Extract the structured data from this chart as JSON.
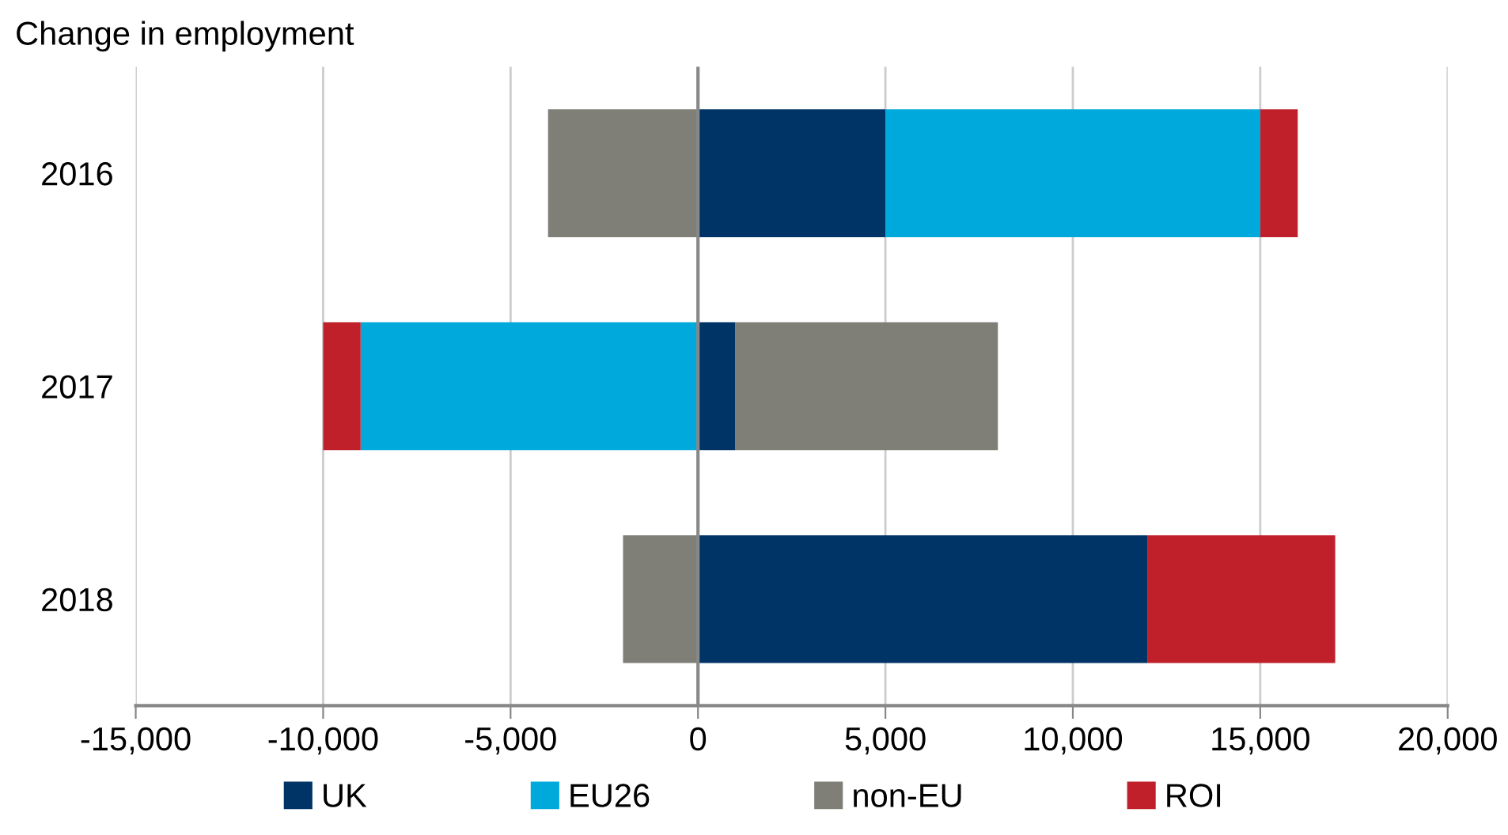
{
  "chart_data": {
    "type": "bar",
    "orientation": "horizontal",
    "stacked": true,
    "title": "Change in employment",
    "categories": [
      "2016",
      "2017",
      "2018"
    ],
    "series": [
      {
        "name": "UK",
        "color": "#003366",
        "values": [
          5000,
          1000,
          12000
        ]
      },
      {
        "name": "EU26",
        "color": "#00a9dc",
        "values": [
          10000,
          -9000,
          0
        ]
      },
      {
        "name": "non-EU",
        "color": "#7f7f78",
        "values": [
          -4000,
          7000,
          -2000
        ]
      },
      {
        "name": "ROI",
        "color": "#c0202a",
        "values": [
          1000,
          -1000,
          5000
        ]
      }
    ],
    "xlim": [
      -15000,
      20000
    ],
    "xticks": [
      {
        "value": -15000,
        "label": "-15,000"
      },
      {
        "value": -10000,
        "label": "-10,000"
      },
      {
        "value": -5000,
        "label": "-5,000"
      },
      0,
      {
        "value": 5000,
        "label": "5,000"
      },
      {
        "value": 10000,
        "label": "10,000"
      },
      {
        "value": 15000,
        "label": "15,000"
      },
      {
        "value": 20000,
        "label": "20,000"
      }
    ],
    "grid": "x",
    "legend": "bottom"
  }
}
